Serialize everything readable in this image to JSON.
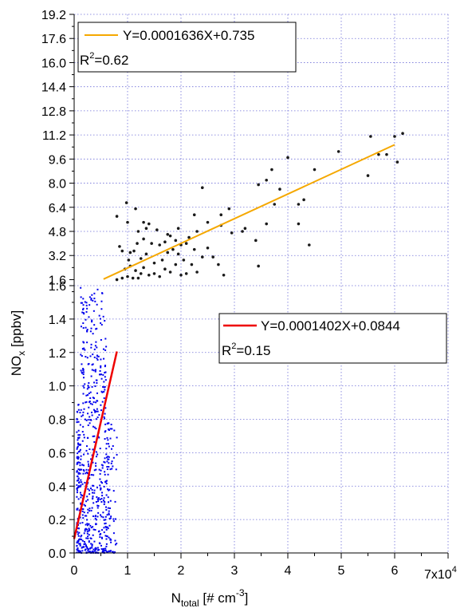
{
  "chart_data": {
    "type": "scatter",
    "broken_axis": true,
    "grid": true,
    "xlabel": {
      "main": "N",
      "sub": "total",
      "rest": " [#  cm",
      "sup": "-3",
      "close": "]"
    },
    "ylabel": {
      "main": "NO",
      "sub": "x",
      "rest": " [ppbv]"
    },
    "x_axis": {
      "xlim": [
        0,
        70000
      ],
      "ticks": [
        0,
        10000,
        20000,
        30000,
        40000,
        50000,
        60000,
        70000
      ],
      "tick_labels": [
        "0",
        "1",
        "2",
        "3",
        "4",
        "5",
        "6",
        "7x10"
      ],
      "last_tick_exponent": "4"
    },
    "panels": [
      {
        "name": "upper",
        "ylim": [
          1.2,
          19.2
        ],
        "yticks": [
          "1.6",
          "3.2",
          "4.8",
          "6.4",
          "8.0",
          "9.6",
          "11.2",
          "12.8",
          "14.4",
          "16.0",
          "17.6",
          "19.2"
        ],
        "point_color": "#1a1a1a",
        "line_color": "#f5a800",
        "fit": {
          "slope": 0.0001636,
          "intercept": 0.735,
          "x_range": [
            5500,
            60000
          ]
        },
        "legend": {
          "equation": "Y=0.0001636X+0.735",
          "r2_prefix": "R",
          "r2_sup": "2",
          "r2_value": "=0.62"
        },
        "points": [
          [
            9000,
            1.7
          ],
          [
            9500,
            2.3
          ],
          [
            10000,
            1.8
          ],
          [
            10500,
            2.5
          ],
          [
            11000,
            1.7
          ],
          [
            11500,
            2.2
          ],
          [
            12000,
            1.7
          ],
          [
            12500,
            2.0
          ],
          [
            13000,
            2.4
          ],
          [
            14000,
            1.9
          ],
          [
            15000,
            2.0
          ],
          [
            16000,
            1.8
          ],
          [
            17000,
            2.3
          ],
          [
            18000,
            2.1
          ],
          [
            19000,
            2.6
          ],
          [
            20000,
            1.9
          ],
          [
            21000,
            2.0
          ],
          [
            22000,
            2.6
          ],
          [
            23000,
            2.1
          ],
          [
            8000,
            1.6
          ],
          [
            10200,
            2.9
          ],
          [
            11200,
            3.5
          ],
          [
            12500,
            3.0
          ],
          [
            13500,
            3.3
          ],
          [
            15000,
            2.7
          ],
          [
            16500,
            2.9
          ],
          [
            17500,
            3.4
          ],
          [
            18500,
            3.6
          ],
          [
            19500,
            3.3
          ],
          [
            20500,
            2.9
          ],
          [
            22500,
            3.6
          ],
          [
            24000,
            3.1
          ],
          [
            25000,
            3.7
          ],
          [
            26000,
            3.1
          ],
          [
            27000,
            2.6
          ],
          [
            28000,
            1.9
          ],
          [
            8500,
            3.8
          ],
          [
            9000,
            3.5
          ],
          [
            10500,
            3.4
          ],
          [
            11800,
            4.0
          ],
          [
            13000,
            4.3
          ],
          [
            14500,
            4.0
          ],
          [
            16000,
            3.9
          ],
          [
            17000,
            4.1
          ],
          [
            18000,
            4.5
          ],
          [
            19000,
            4.2
          ],
          [
            20000,
            3.9
          ],
          [
            21000,
            4.0
          ],
          [
            12000,
            4.8
          ],
          [
            13500,
            5.0
          ],
          [
            15500,
            4.9
          ],
          [
            17500,
            4.6
          ],
          [
            19500,
            5.0
          ],
          [
            21500,
            4.4
          ],
          [
            23000,
            4.8
          ],
          [
            25000,
            5.4
          ],
          [
            27500,
            5.2
          ],
          [
            29500,
            4.7
          ],
          [
            31500,
            4.8
          ],
          [
            10000,
            5.4
          ],
          [
            11500,
            6.3
          ],
          [
            13000,
            5.4
          ],
          [
            14000,
            5.3
          ],
          [
            8000,
            5.8
          ],
          [
            9800,
            6.7
          ],
          [
            22500,
            5.9
          ],
          [
            27500,
            5.9
          ],
          [
            32000,
            5.0
          ],
          [
            29000,
            6.3
          ],
          [
            34000,
            4.2
          ],
          [
            36000,
            5.3
          ],
          [
            37500,
            6.6
          ],
          [
            38500,
            7.6
          ],
          [
            37000,
            8.9
          ],
          [
            36000,
            8.2
          ],
          [
            34500,
            7.9
          ],
          [
            40000,
            9.7
          ],
          [
            42000,
            6.6
          ],
          [
            43000,
            6.9
          ],
          [
            42000,
            5.3
          ],
          [
            44000,
            3.9
          ],
          [
            45000,
            8.9
          ],
          [
            34500,
            2.5
          ],
          [
            49500,
            10.1
          ],
          [
            55000,
            8.5
          ],
          [
            55500,
            11.1
          ],
          [
            57000,
            9.9
          ],
          [
            58500,
            9.9
          ],
          [
            60000,
            11.1
          ],
          [
            60500,
            9.4
          ],
          [
            61500,
            11.3
          ],
          [
            24000,
            7.7
          ]
        ]
      },
      {
        "name": "lower",
        "ylim": [
          0,
          1.6
        ],
        "yticks": [
          "0.0",
          "0.2",
          "0.4",
          "0.6",
          "0.8",
          "1.0",
          "1.2",
          "1.4",
          "1.6"
        ],
        "point_color": "#0000ee",
        "line_color": "#ee0000",
        "fit": {
          "slope": 0.0001402,
          "intercept": 0.0844,
          "x_range": [
            0,
            8000
          ]
        },
        "legend": {
          "equation": "Y=0.0001402X+0.0844",
          "r2_prefix": "R",
          "r2_sup": "2",
          "r2_value": "=0.15"
        }
      }
    ]
  }
}
